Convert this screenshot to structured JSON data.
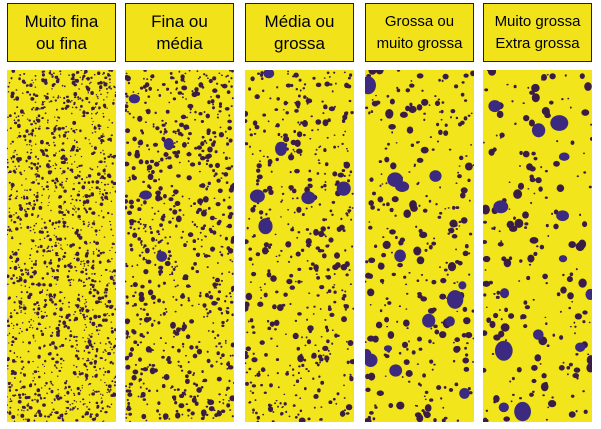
{
  "panels": [
    {
      "label": [
        "Muito fina",
        "ou fina"
      ]
    },
    {
      "label": [
        "Fina ou",
        "média"
      ]
    },
    {
      "label": [
        "Média ou",
        "grossa"
      ]
    },
    {
      "label": [
        "Grossa ou",
        "muito grossa"
      ]
    },
    {
      "label": [
        "Muito grossa",
        "Extra grossa"
      ]
    }
  ]
}
